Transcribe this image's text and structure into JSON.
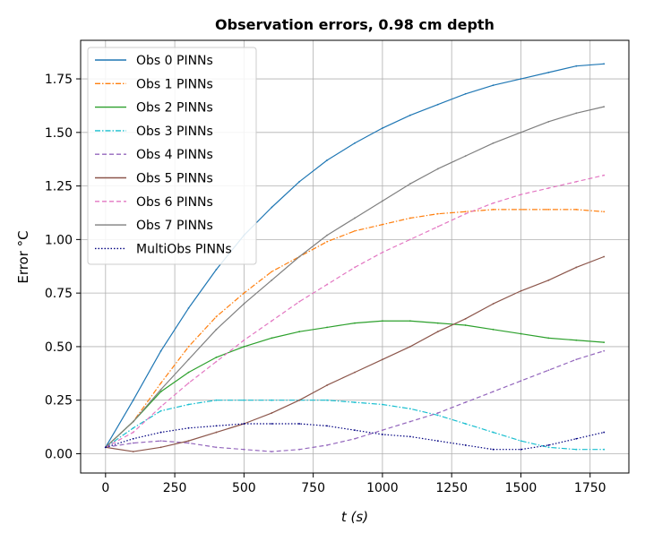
{
  "chart_data": {
    "type": "line",
    "title": "Observation errors, 0.98 cm depth",
    "xlabel": "t (s)",
    "ylabel": "Error °C",
    "xlim": [
      -90,
      1890
    ],
    "ylim": [
      -0.09,
      1.93
    ],
    "x_ticks": [
      0,
      250,
      500,
      750,
      1000,
      1250,
      1500,
      1750
    ],
    "y_ticks": [
      0.0,
      0.25,
      0.5,
      0.75,
      1.0,
      1.25,
      1.5,
      1.75
    ],
    "x_tick_labels": [
      "0",
      "250",
      "500",
      "750",
      "1000",
      "1250",
      "1500",
      "1750"
    ],
    "y_tick_labels": [
      "0.00",
      "0.25",
      "0.50",
      "0.75",
      "1.00",
      "1.25",
      "1.50",
      "1.75"
    ],
    "grid": true,
    "legend_position": "upper-left",
    "x": [
      0,
      100,
      200,
      300,
      400,
      500,
      600,
      700,
      800,
      900,
      1000,
      1100,
      1200,
      1300,
      1400,
      1500,
      1600,
      1700,
      1800
    ],
    "series": [
      {
        "name": "Obs 0 PINNs",
        "color": "#1f77b4",
        "dash": "solid",
        "values": [
          0.03,
          0.25,
          0.48,
          0.68,
          0.86,
          1.02,
          1.15,
          1.27,
          1.37,
          1.45,
          1.52,
          1.58,
          1.63,
          1.68,
          1.72,
          1.75,
          1.78,
          1.81,
          1.82
        ]
      },
      {
        "name": "Obs 1 PINNs",
        "color": "#ff7f0e",
        "dash": "dashdot",
        "values": [
          0.03,
          0.15,
          0.33,
          0.5,
          0.64,
          0.75,
          0.85,
          0.92,
          0.99,
          1.04,
          1.07,
          1.1,
          1.12,
          1.13,
          1.14,
          1.14,
          1.14,
          1.14,
          1.13
        ]
      },
      {
        "name": "Obs 2 PINNs",
        "color": "#2ca02c",
        "dash": "solid",
        "values": [
          0.03,
          0.15,
          0.29,
          0.38,
          0.45,
          0.5,
          0.54,
          0.57,
          0.59,
          0.61,
          0.62,
          0.62,
          0.61,
          0.6,
          0.58,
          0.56,
          0.54,
          0.53,
          0.52
        ]
      },
      {
        "name": "Obs 3 PINNs",
        "color": "#17becf",
        "dash": "dashdot",
        "values": [
          0.03,
          0.12,
          0.2,
          0.23,
          0.25,
          0.25,
          0.25,
          0.25,
          0.25,
          0.24,
          0.23,
          0.21,
          0.18,
          0.14,
          0.1,
          0.06,
          0.03,
          0.02,
          0.02
        ]
      },
      {
        "name": "Obs 4 PINNs",
        "color": "#9467bd",
        "dash": "dashed",
        "values": [
          0.03,
          0.05,
          0.06,
          0.05,
          0.03,
          0.02,
          0.01,
          0.02,
          0.04,
          0.07,
          0.11,
          0.15,
          0.19,
          0.24,
          0.29,
          0.34,
          0.39,
          0.44,
          0.48
        ]
      },
      {
        "name": "Obs 5 PINNs",
        "color": "#8c564b",
        "dash": "solid",
        "values": [
          0.03,
          0.01,
          0.03,
          0.06,
          0.1,
          0.14,
          0.19,
          0.25,
          0.32,
          0.38,
          0.44,
          0.5,
          0.57,
          0.63,
          0.7,
          0.76,
          0.81,
          0.87,
          0.92
        ]
      },
      {
        "name": "Obs 6 PINNs",
        "color": "#e377c2",
        "dash": "dashed",
        "values": [
          0.03,
          0.1,
          0.22,
          0.33,
          0.43,
          0.53,
          0.62,
          0.71,
          0.79,
          0.87,
          0.94,
          1.0,
          1.06,
          1.12,
          1.17,
          1.21,
          1.24,
          1.27,
          1.3
        ]
      },
      {
        "name": "Obs 7 PINNs",
        "color": "#7f7f7f",
        "dash": "solid",
        "values": [
          0.03,
          0.15,
          0.3,
          0.44,
          0.58,
          0.7,
          0.81,
          0.92,
          1.02,
          1.1,
          1.18,
          1.26,
          1.33,
          1.39,
          1.45,
          1.5,
          1.55,
          1.59,
          1.62
        ]
      },
      {
        "name": "MultiObs PINNs",
        "color": "#000080",
        "dash": "dotted",
        "values": [
          0.03,
          0.07,
          0.1,
          0.12,
          0.13,
          0.14,
          0.14,
          0.14,
          0.13,
          0.11,
          0.09,
          0.08,
          0.06,
          0.04,
          0.02,
          0.02,
          0.04,
          0.07,
          0.1
        ]
      }
    ]
  }
}
